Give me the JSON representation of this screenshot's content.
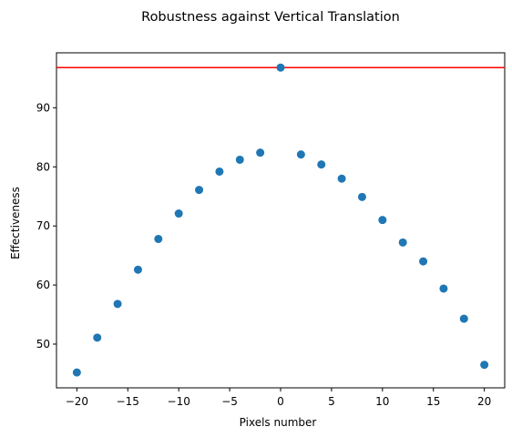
{
  "chart_data": {
    "type": "scatter",
    "title": "Robustness against Vertical Translation",
    "xlabel": "Pixels number",
    "ylabel": "Effectiveness",
    "xlim": [
      -22,
      22
    ],
    "ylim": [
      42.6,
      99.3
    ],
    "xticks": [
      -20,
      -15,
      -10,
      -5,
      0,
      5,
      10,
      15,
      20
    ],
    "xtick_labels": [
      "−20",
      "−15",
      "−10",
      "−5",
      "0",
      "5",
      "10",
      "15",
      "20"
    ],
    "yticks": [
      50,
      60,
      70,
      80,
      90
    ],
    "ytick_labels": [
      "50",
      "60",
      "70",
      "80",
      "90"
    ],
    "grid": false,
    "series": [
      {
        "color": "#1f77b4",
        "x": [
          -20,
          -18,
          -16,
          -14,
          -12,
          -10,
          -8,
          -6,
          -4,
          -2,
          0,
          2,
          4,
          6,
          8,
          10,
          12,
          14,
          16,
          18,
          20
        ],
        "y": [
          45.2,
          51.1,
          56.8,
          62.6,
          67.8,
          72.1,
          76.1,
          79.2,
          81.2,
          82.4,
          96.8,
          82.1,
          80.4,
          78.0,
          74.9,
          71.0,
          67.2,
          64.0,
          59.4,
          54.3,
          46.5
        ]
      }
    ],
    "reference_line": {
      "y": 96.8,
      "color": "#ff0000"
    }
  }
}
